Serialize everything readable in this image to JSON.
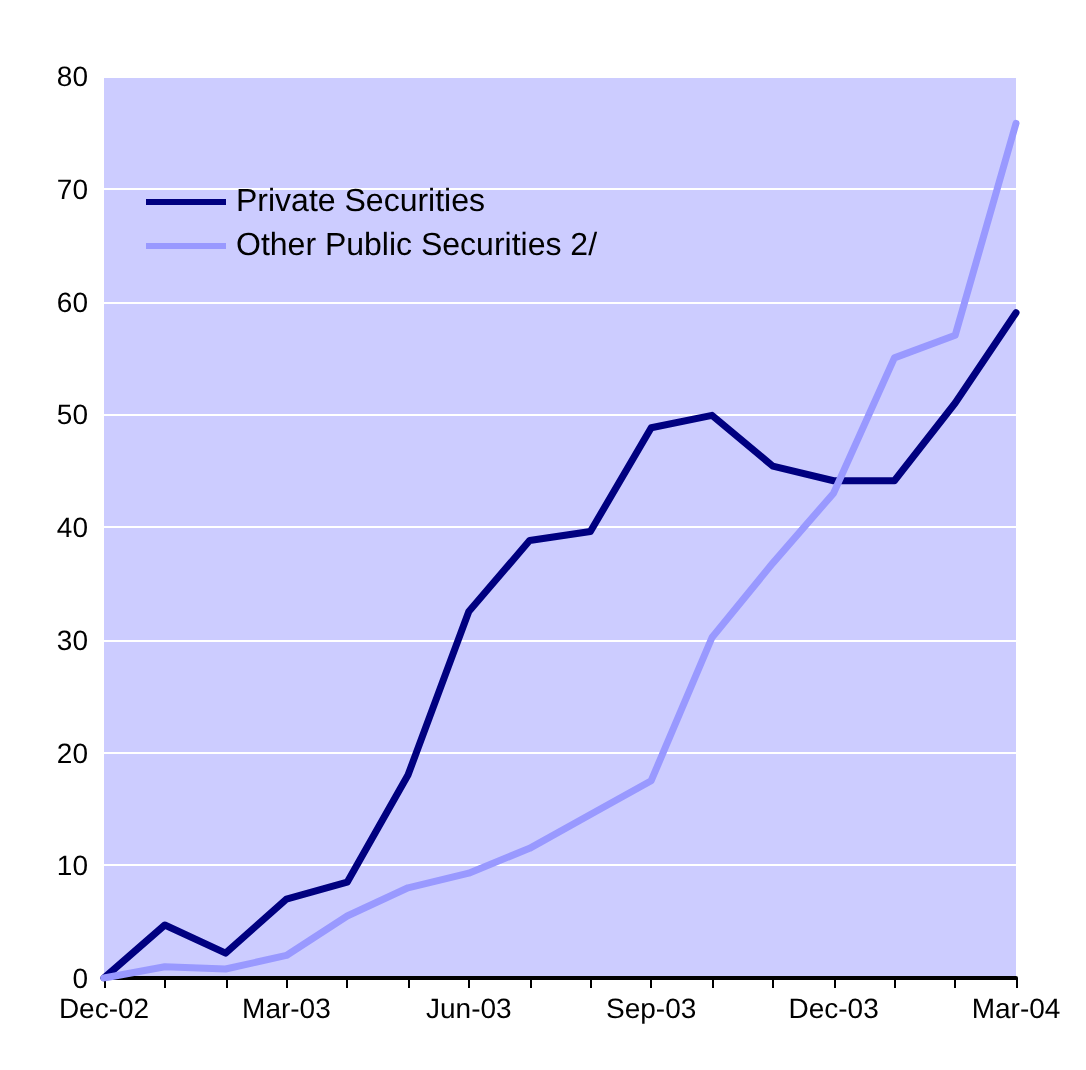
{
  "chart_data": {
    "type": "line",
    "categories": [
      "Dec-02",
      null,
      null,
      "Mar-03",
      null,
      null,
      "Jun-03",
      null,
      null,
      "Sep-03",
      null,
      null,
      "Dec-03",
      null,
      null,
      "Mar-04"
    ],
    "series": [
      {
        "name": "Private Securities",
        "color": "#000080",
        "values": [
          0,
          4.7,
          2.2,
          7,
          8.5,
          18,
          32.5,
          38.8,
          39.6,
          48.8,
          49.9,
          45.4,
          44.1,
          44.1,
          51,
          59
        ]
      },
      {
        "name": "Other Public Securities 2/",
        "color": "#9999ff",
        "values": [
          0,
          1,
          0.8,
          2,
          5.5,
          8,
          9.3,
          11.5,
          14.5,
          17.5,
          30.2,
          36.8,
          43,
          55,
          57,
          75.8
        ]
      }
    ],
    "ylim": [
      0,
      80
    ],
    "yticks": [
      0,
      10,
      20,
      30,
      40,
      50,
      60,
      70,
      80
    ],
    "grid": "y",
    "legend": "top left",
    "marker": "none"
  }
}
